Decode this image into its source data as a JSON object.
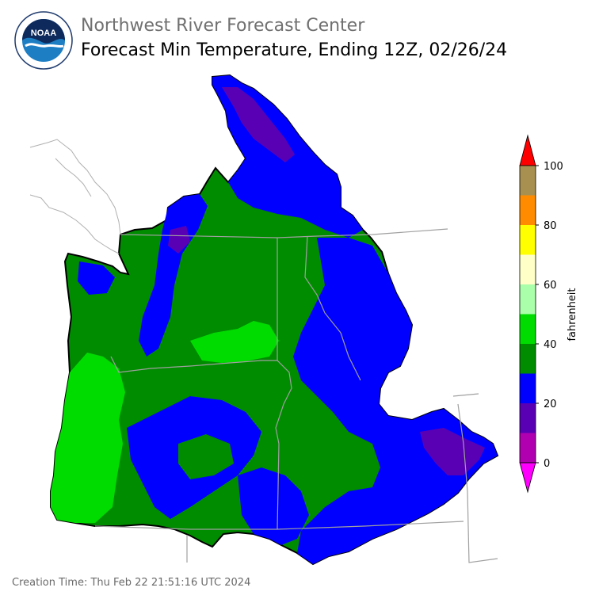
{
  "header": {
    "org_name": "Northwest River Forecast Center",
    "title": "Forecast Min Temperature, Ending 12Z, 02/26/24",
    "logo_text": "NOAA",
    "logo_ring_text": "NATIONAL OCEANIC AND ATMOSPHERIC ADMINISTRATION · U.S. DEPARTMENT OF COMMERCE"
  },
  "colorbar": {
    "unit_label": "fahrenheit",
    "ticks": [
      "100",
      "80",
      "60",
      "40",
      "20",
      "0"
    ],
    "bins": [
      {
        "range": "<0",
        "color": "#ff00ff"
      },
      {
        "range": "0-10",
        "color": "#b000b0"
      },
      {
        "range": "10-20",
        "color": "#5a00b4"
      },
      {
        "range": "20-30",
        "color": "#0000ff"
      },
      {
        "range": "30-40",
        "color": "#008c00"
      },
      {
        "range": "40-50",
        "color": "#00dc00"
      },
      {
        "range": "50-60",
        "color": "#aaffaa"
      },
      {
        "range": "60-70",
        "color": "#ffffc8"
      },
      {
        "range": "70-80",
        "color": "#ffff00"
      },
      {
        "range": "80-90",
        "color": "#ff8c00"
      },
      {
        "range": "90-100",
        "color": "#a89050"
      },
      {
        "range": ">100",
        "color": "#ff0000"
      }
    ]
  },
  "footer": {
    "creation_time": "Creation Time: Thu Feb 22 21:51:16 UTC 2024"
  }
}
